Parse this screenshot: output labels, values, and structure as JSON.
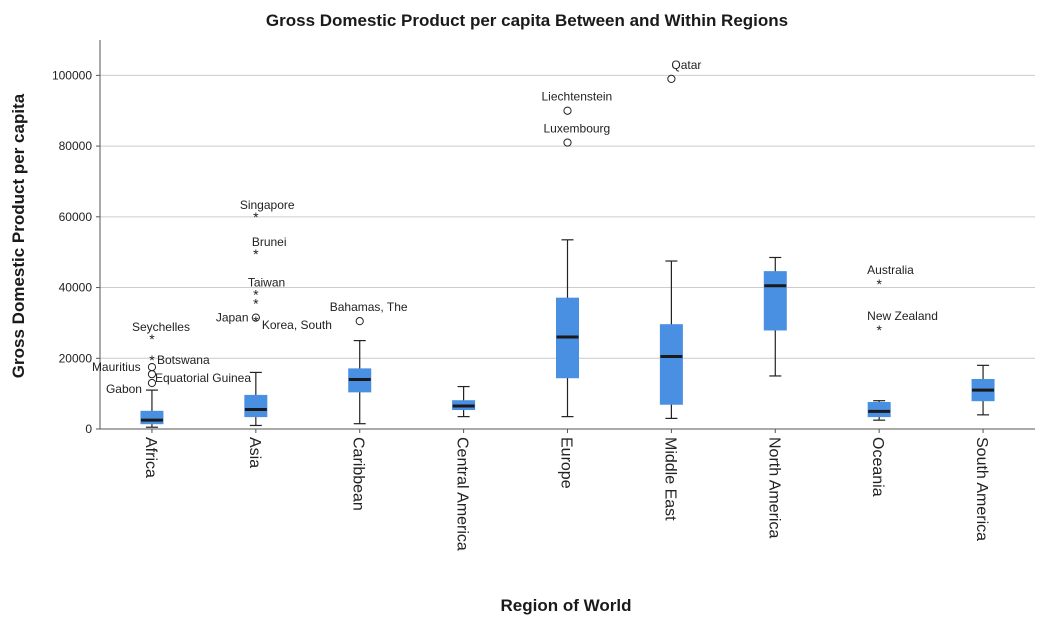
{
  "chart_data": {
    "type": "boxplot",
    "title": "Gross Domestic Product per capita Between and Within Regions",
    "xlabel": "Region of World",
    "ylabel": "Gross Domestic Product per capita",
    "ylim": [
      0,
      110000
    ],
    "yticks": [
      0,
      20000,
      40000,
      60000,
      80000,
      100000
    ],
    "grid": true,
    "colors": {
      "box": "#4a90e2",
      "median": "#1a1a1a",
      "grid": "#cccccc",
      "axis": "#555555"
    },
    "categories": [
      "Africa",
      "Asia",
      "Caribbean",
      "Central America",
      "Europe",
      "Middle East",
      "North America",
      "Oceania",
      "South America"
    ],
    "boxes": [
      {
        "category": "Africa",
        "min": 500,
        "q1": 1500,
        "median": 2500,
        "q3": 5000,
        "max": 11000
      },
      {
        "category": "Asia",
        "min": 1000,
        "q1": 3500,
        "median": 5500,
        "q3": 9500,
        "max": 16000
      },
      {
        "category": "Caribbean",
        "min": 1500,
        "q1": 10500,
        "median": 14000,
        "q3": 17000,
        "max": 25000
      },
      {
        "category": "Central America",
        "min": 3500,
        "q1": 5500,
        "median": 6500,
        "q3": 8000,
        "max": 12000
      },
      {
        "category": "Europe",
        "min": 3500,
        "q1": 14500,
        "median": 26000,
        "q3": 37000,
        "max": 53500
      },
      {
        "category": "Middle East",
        "min": 3000,
        "q1": 7000,
        "median": 20500,
        "q3": 29500,
        "max": 47500
      },
      {
        "category": "North America",
        "min": 15000,
        "q1": 28000,
        "median": 40500,
        "q3": 44500,
        "max": 48500
      },
      {
        "category": "Oceania",
        "min": 2500,
        "q1": 3500,
        "median": 5000,
        "q3": 7500,
        "max": 8000
      },
      {
        "category": "South America",
        "min": 4000,
        "q1": 8000,
        "median": 11000,
        "q3": 14000,
        "max": 18000
      }
    ],
    "outliers": [
      {
        "category": "Africa",
        "label": "Seychelles",
        "value": 25500,
        "marker": "star",
        "label_dx": -20,
        "label_dy": -12
      },
      {
        "category": "Africa",
        "label": "Mauritius",
        "value": 17500,
        "marker": "circle",
        "label_dx": -60,
        "label_dy": 0
      },
      {
        "category": "Africa",
        "label": "Botswana",
        "value": 19500,
        "marker": "star",
        "label_dx": 5,
        "label_dy": 0
      },
      {
        "category": "Africa",
        "label": "Equatorial Guinea",
        "value": 15500,
        "marker": "circle",
        "label_dx": 3,
        "label_dy": 4
      },
      {
        "category": "Africa",
        "label": "Gabon",
        "value": 13000,
        "marker": "circle",
        "label_dx": -46,
        "label_dy": 6
      },
      {
        "category": "Asia",
        "label": "Singapore",
        "value": 60000,
        "marker": "star",
        "label_dx": -16,
        "label_dy": -12
      },
      {
        "category": "Asia",
        "label": "Brunei",
        "value": 49500,
        "marker": "star",
        "label_dx": -4,
        "label_dy": -12
      },
      {
        "category": "Asia",
        "label": "Taiwan",
        "value": 38000,
        "marker": "star",
        "label_dx": -8,
        "label_dy": -12
      },
      {
        "category": "Asia",
        "label": "",
        "value": 35500,
        "marker": "star",
        "label_dx": 0,
        "label_dy": 0
      },
      {
        "category": "Asia",
        "label": "Japan",
        "value": 31500,
        "marker": "circle",
        "label_dx": -40,
        "label_dy": 0
      },
      {
        "category": "Asia",
        "label": "Korea, South",
        "value": 30500,
        "marker": "star",
        "label_dx": 6,
        "label_dy": 4
      },
      {
        "category": "Caribbean",
        "label": "Bahamas, The",
        "value": 30500,
        "marker": "circle",
        "label_dx": -30,
        "label_dy": -14
      },
      {
        "category": "Europe",
        "label": "Liechtenstein",
        "value": 90000,
        "marker": "circle",
        "label_dx": -26,
        "label_dy": -14
      },
      {
        "category": "Europe",
        "label": "Luxembourg",
        "value": 81000,
        "marker": "circle",
        "label_dx": -24,
        "label_dy": -14
      },
      {
        "category": "Middle East",
        "label": "Qatar",
        "value": 99000,
        "marker": "circle",
        "label_dx": 0,
        "label_dy": -14
      },
      {
        "category": "Oceania",
        "label": "Australia",
        "value": 41000,
        "marker": "star",
        "label_dx": -12,
        "label_dy": -14
      },
      {
        "category": "Oceania",
        "label": "New Zealand",
        "value": 28000,
        "marker": "star",
        "label_dx": -12,
        "label_dy": -14
      }
    ]
  }
}
